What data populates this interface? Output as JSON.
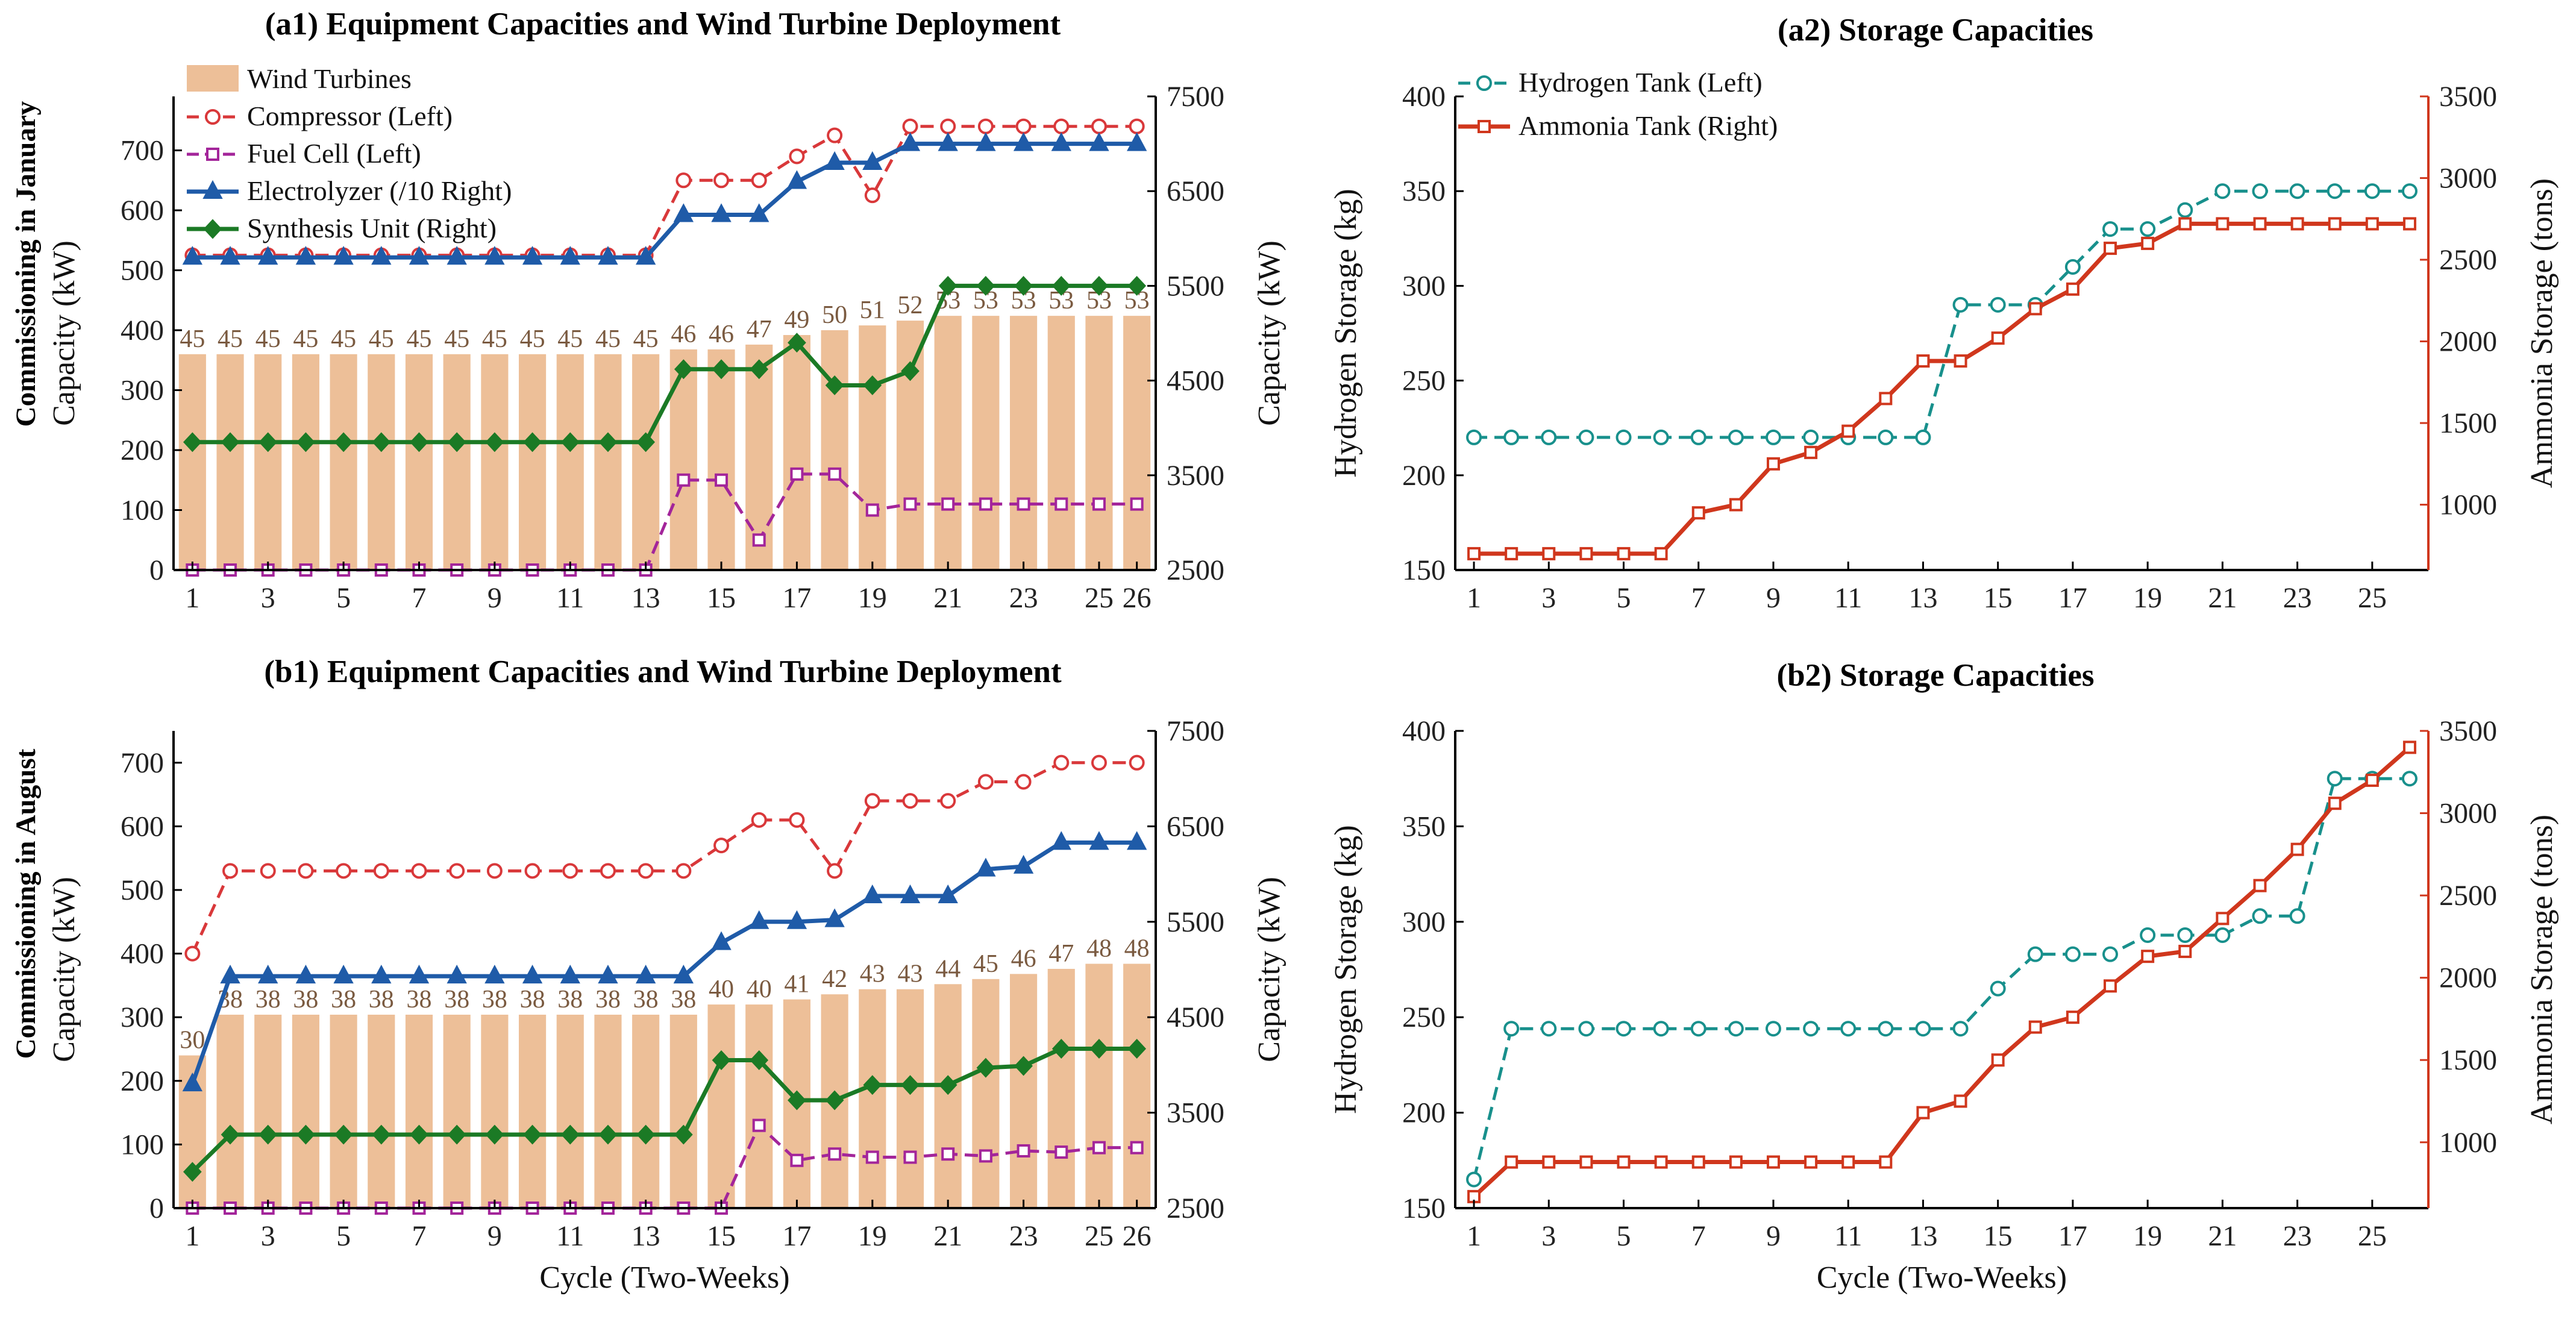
{
  "colors": {
    "bar": "#EDBF98",
    "compressor": "#D9383A",
    "fuel_cell": "#A3259A",
    "electrolyzer": "#1F5BA8",
    "synthesis": "#1B7A25",
    "hydrogen": "#18908C",
    "ammonia": "#D0371D",
    "axis": "#000000",
    "right_axis_storage": "#D0371D"
  },
  "row_labels": [
    "Commissioning in January",
    "Commissioning in August"
  ],
  "chart_data": [
    {
      "id": "a1",
      "type": "bar+line",
      "title": "(a1) Equipment Capacities and Wind Turbine Deployment",
      "xlabel": "",
      "ylabel": "Capacity (kW)",
      "y2label": "Capacity (kW)",
      "xlim": [
        0.5,
        26.5
      ],
      "ylim": [
        0,
        790
      ],
      "y2lim": [
        2500,
        7500
      ],
      "xticks": [
        1,
        3,
        5,
        7,
        9,
        11,
        13,
        15,
        17,
        19,
        21,
        23,
        25,
        26
      ],
      "yticks": [
        0,
        100,
        200,
        300,
        400,
        500,
        600,
        700
      ],
      "y2ticks": [
        2500,
        3500,
        4500,
        5500,
        6500,
        7500
      ],
      "x": [
        1,
        2,
        3,
        4,
        5,
        6,
        7,
        8,
        9,
        10,
        11,
        12,
        13,
        14,
        15,
        16,
        17,
        18,
        19,
        20,
        21,
        22,
        23,
        24,
        25,
        26
      ],
      "bars": {
        "name": "Wind Turbines",
        "heights": [
          360,
          360,
          360,
          360,
          360,
          360,
          360,
          360,
          360,
          360,
          360,
          360,
          360,
          368,
          368,
          376,
          392,
          400,
          408,
          416,
          424,
          424,
          424,
          424,
          424,
          424
        ],
        "labels": [
          45,
          45,
          45,
          45,
          45,
          45,
          45,
          45,
          45,
          45,
          45,
          45,
          45,
          46,
          46,
          47,
          49,
          50,
          51,
          52,
          53,
          53,
          53,
          53,
          53,
          53
        ]
      },
      "series": [
        {
          "name": "Compressor (Left)",
          "axis": "left",
          "marker": "circle",
          "dash": true,
          "color_key": "compressor",
          "values": [
            525,
            525,
            525,
            525,
            525,
            525,
            525,
            525,
            525,
            525,
            525,
            525,
            525,
            650,
            650,
            650,
            690,
            725,
            625,
            740,
            740,
            740,
            740,
            740,
            740,
            740
          ]
        },
        {
          "name": "Fuel Cell (Left)",
          "axis": "left",
          "marker": "square",
          "dash": true,
          "color_key": "fuel_cell",
          "values": [
            0,
            0,
            0,
            0,
            0,
            0,
            0,
            0,
            0,
            0,
            0,
            0,
            0,
            150,
            150,
            50,
            160,
            160,
            100,
            110,
            110,
            110,
            110,
            110,
            110,
            110
          ]
        },
        {
          "name": "Electrolyzer (/10 Right)",
          "axis": "right",
          "marker": "triangle",
          "dash": false,
          "color_key": "electrolyzer",
          "values": [
            5800,
            5800,
            5800,
            5800,
            5800,
            5800,
            5800,
            5800,
            5800,
            5800,
            5800,
            5800,
            5800,
            6250,
            6250,
            6250,
            6600,
            6800,
            6800,
            7000,
            7000,
            7000,
            7000,
            7000,
            7000,
            7000
          ]
        },
        {
          "name": "Synthesis Unit (Right)",
          "axis": "right",
          "marker": "diamond",
          "dash": false,
          "color_key": "synthesis",
          "values": [
            3850,
            3850,
            3850,
            3850,
            3850,
            3850,
            3850,
            3850,
            3850,
            3850,
            3850,
            3850,
            3850,
            4620,
            4620,
            4620,
            4900,
            4450,
            4450,
            4600,
            5500,
            5500,
            5500,
            5500,
            5500,
            5500
          ]
        }
      ]
    },
    {
      "id": "a2",
      "type": "line",
      "title": "(a2) Storage Capacities",
      "xlabel": "",
      "ylabel": "Hydrogen Storage (kg)",
      "y2label": "Ammonia Storage (tons)",
      "xlim": [
        0.5,
        26.5
      ],
      "ylim": [
        150,
        400
      ],
      "y2lim": [
        600,
        3500
      ],
      "xticks": [
        1,
        3,
        5,
        7,
        9,
        11,
        13,
        15,
        17,
        19,
        21,
        23,
        25
      ],
      "yticks": [
        150,
        200,
        250,
        300,
        350,
        400
      ],
      "y2ticks": [
        1000,
        1500,
        2000,
        2500,
        3000,
        3500
      ],
      "x": [
        1,
        2,
        3,
        4,
        5,
        6,
        7,
        8,
        9,
        10,
        11,
        12,
        13,
        14,
        15,
        16,
        17,
        18,
        19,
        20,
        21,
        22,
        23,
        24,
        25,
        26
      ],
      "series": [
        {
          "name": "Hydrogen Tank (Left)",
          "axis": "left",
          "marker": "circle",
          "dash": true,
          "color_key": "hydrogen",
          "values": [
            220,
            220,
            220,
            220,
            220,
            220,
            220,
            220,
            220,
            220,
            220,
            220,
            220,
            290,
            290,
            290,
            310,
            330,
            330,
            340,
            350,
            350,
            350,
            350,
            350,
            350
          ]
        },
        {
          "name": "Ammonia Tank (Right)",
          "axis": "right",
          "marker": "square",
          "dash": false,
          "color_key": "ammonia",
          "values": [
            700,
            700,
            700,
            700,
            700,
            700,
            950,
            1000,
            1250,
            1320,
            1450,
            1650,
            1880,
            1880,
            2020,
            2200,
            2320,
            2570,
            2600,
            2720,
            2720,
            2720,
            2720,
            2720,
            2720,
            2720
          ]
        }
      ]
    },
    {
      "id": "b1",
      "type": "bar+line",
      "title": "(b1) Equipment Capacities and Wind Turbine Deployment",
      "xlabel": "Cycle (Two-Weeks)",
      "ylabel": "Capacity (kW)",
      "y2label": "Capacity (kW)",
      "xlim": [
        0.5,
        26.5
      ],
      "ylim": [
        0,
        750
      ],
      "y2lim": [
        2500,
        7500
      ],
      "xticks": [
        1,
        3,
        5,
        7,
        9,
        11,
        13,
        15,
        17,
        19,
        21,
        23,
        25,
        26
      ],
      "yticks": [
        0,
        100,
        200,
        300,
        400,
        500,
        600,
        700
      ],
      "y2ticks": [
        2500,
        3500,
        4500,
        5500,
        6500,
        7500
      ],
      "x": [
        1,
        2,
        3,
        4,
        5,
        6,
        7,
        8,
        9,
        10,
        11,
        12,
        13,
        14,
        15,
        16,
        17,
        18,
        19,
        20,
        21,
        22,
        23,
        24,
        25,
        26
      ],
      "bars": {
        "name": "Wind Turbines",
        "heights": [
          240,
          304,
          304,
          304,
          304,
          304,
          304,
          304,
          304,
          304,
          304,
          304,
          304,
          304,
          320,
          320,
          328,
          336,
          344,
          344,
          352,
          360,
          368,
          376,
          384,
          384
        ],
        "labels": [
          30,
          38,
          38,
          38,
          38,
          38,
          38,
          38,
          38,
          38,
          38,
          38,
          38,
          38,
          40,
          40,
          41,
          42,
          43,
          43,
          44,
          45,
          46,
          47,
          48,
          48
        ]
      },
      "series": [
        {
          "name": "Compressor (Left)",
          "axis": "left",
          "marker": "circle",
          "dash": true,
          "color_key": "compressor",
          "values": [
            400,
            530,
            530,
            530,
            530,
            530,
            530,
            530,
            530,
            530,
            530,
            530,
            530,
            530,
            570,
            610,
            610,
            530,
            640,
            640,
            640,
            670,
            670,
            700,
            700,
            700
          ]
        },
        {
          "name": "Fuel Cell (Left)",
          "axis": "left",
          "marker": "square",
          "dash": true,
          "color_key": "fuel_cell",
          "values": [
            0,
            0,
            0,
            0,
            0,
            0,
            0,
            0,
            0,
            0,
            0,
            0,
            0,
            0,
            0,
            130,
            75,
            85,
            80,
            80,
            85,
            82,
            90,
            88,
            95,
            95
          ]
        },
        {
          "name": "Electrolyzer (/10 Right)",
          "axis": "right",
          "marker": "triangle",
          "dash": false,
          "color_key": "electrolyzer",
          "values": [
            3800,
            4930,
            4930,
            4930,
            4930,
            4930,
            4930,
            4930,
            4930,
            4930,
            4930,
            4930,
            4930,
            4930,
            5280,
            5500,
            5500,
            5520,
            5770,
            5770,
            5770,
            6050,
            6080,
            6330,
            6330,
            6330
          ]
        },
        {
          "name": "Synthesis Unit (Right)",
          "axis": "right",
          "marker": "diamond",
          "dash": false,
          "color_key": "synthesis",
          "values": [
            2880,
            3270,
            3270,
            3270,
            3270,
            3270,
            3270,
            3270,
            3270,
            3270,
            3270,
            3270,
            3270,
            3270,
            4050,
            4050,
            3630,
            3630,
            3790,
            3790,
            3790,
            3970,
            3990,
            4170,
            4170,
            4170
          ]
        }
      ]
    },
    {
      "id": "b2",
      "type": "line",
      "title": "(b2) Storage Capacities",
      "xlabel": "Cycle (Two-Weeks)",
      "ylabel": "Hydrogen Storage (kg)",
      "y2label": "Ammonia Storage (tons)",
      "xlim": [
        0.5,
        26.5
      ],
      "ylim": [
        150,
        400
      ],
      "y2lim": [
        600,
        3500
      ],
      "xticks": [
        1,
        3,
        5,
        7,
        9,
        11,
        13,
        15,
        17,
        19,
        21,
        23,
        25
      ],
      "yticks": [
        150,
        200,
        250,
        300,
        350,
        400
      ],
      "y2ticks": [
        1000,
        1500,
        2000,
        2500,
        3000,
        3500
      ],
      "x": [
        1,
        2,
        3,
        4,
        5,
        6,
        7,
        8,
        9,
        10,
        11,
        12,
        13,
        14,
        15,
        16,
        17,
        18,
        19,
        20,
        21,
        22,
        23,
        24,
        25,
        26
      ],
      "series": [
        {
          "name": "Hydrogen Tank (Left)",
          "axis": "left",
          "marker": "circle",
          "dash": true,
          "color_key": "hydrogen",
          "values": [
            165,
            244,
            244,
            244,
            244,
            244,
            244,
            244,
            244,
            244,
            244,
            244,
            244,
            244,
            265,
            283,
            283,
            283,
            293,
            293,
            293,
            303,
            303,
            375,
            375,
            375
          ]
        },
        {
          "name": "Ammonia Tank (Right)",
          "axis": "right",
          "marker": "square",
          "dash": false,
          "color_key": "ammonia",
          "values": [
            670,
            880,
            880,
            880,
            880,
            880,
            880,
            880,
            880,
            880,
            880,
            880,
            1180,
            1250,
            1500,
            1700,
            1760,
            1950,
            2130,
            2160,
            2360,
            2560,
            2780,
            3060,
            3200,
            3400
          ]
        }
      ]
    }
  ]
}
